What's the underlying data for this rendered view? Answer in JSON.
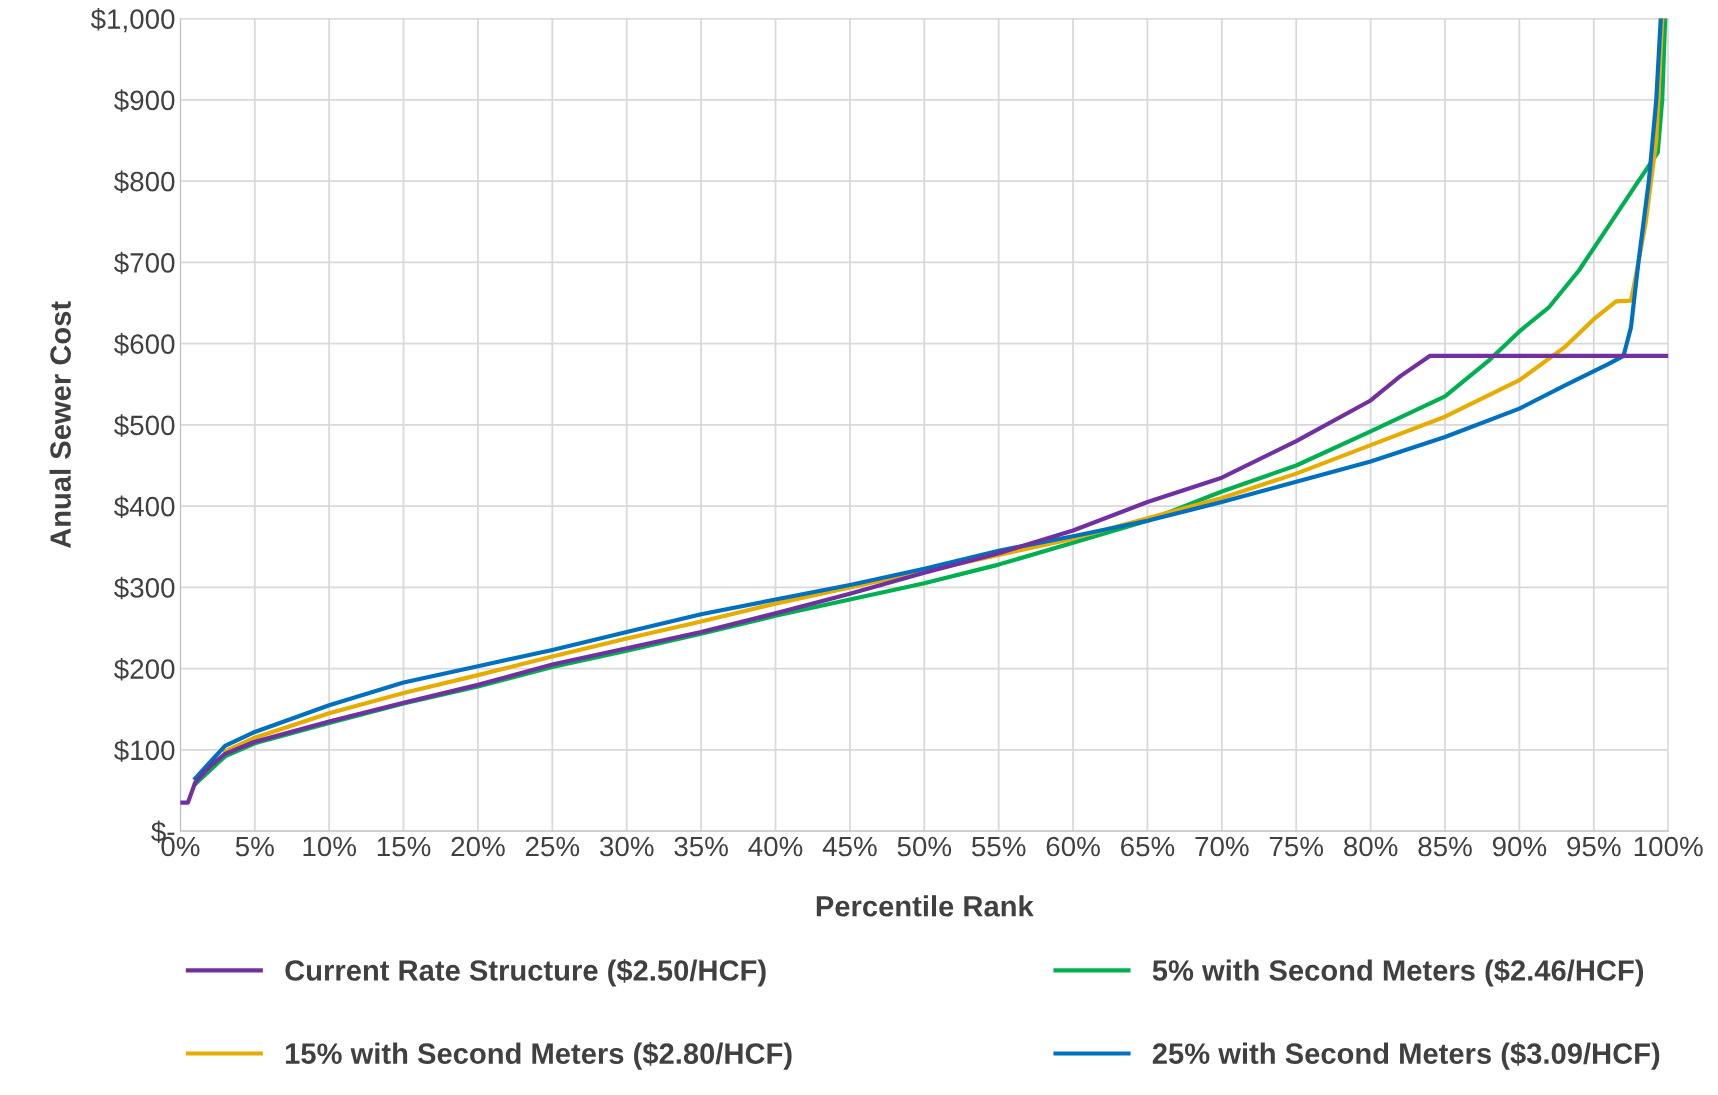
{
  "chart_data": {
    "type": "line",
    "xlabel": "Percentile Rank",
    "ylabel": "Anual Sewer Cost",
    "grid": true,
    "legend": "bottom",
    "marker": "none",
    "line_style": "solid",
    "xlim": [
      0,
      100
    ],
    "ylim": [
      0,
      1000
    ],
    "xticks": [
      {
        "value": 0,
        "label": "0%"
      },
      {
        "value": 5,
        "label": "5%"
      },
      {
        "value": 10,
        "label": "10%"
      },
      {
        "value": 15,
        "label": "15%"
      },
      {
        "value": 20,
        "label": "20%"
      },
      {
        "value": 25,
        "label": "25%"
      },
      {
        "value": 30,
        "label": "30%"
      },
      {
        "value": 35,
        "label": "35%"
      },
      {
        "value": 40,
        "label": "40%"
      },
      {
        "value": 45,
        "label": "45%"
      },
      {
        "value": 50,
        "label": "50%"
      },
      {
        "value": 55,
        "label": "55%"
      },
      {
        "value": 60,
        "label": "60%"
      },
      {
        "value": 65,
        "label": "65%"
      },
      {
        "value": 70,
        "label": "70%"
      },
      {
        "value": 75,
        "label": "75%"
      },
      {
        "value": 80,
        "label": "80%"
      },
      {
        "value": 85,
        "label": "85%"
      },
      {
        "value": 90,
        "label": "90%"
      },
      {
        "value": 95,
        "label": "95%"
      },
      {
        "value": 100,
        "label": "100%"
      }
    ],
    "yticks": [
      {
        "value": 0,
        "label": "$-"
      },
      {
        "value": 100,
        "label": "$100"
      },
      {
        "value": 200,
        "label": "$200"
      },
      {
        "value": 300,
        "label": "$300"
      },
      {
        "value": 400,
        "label": "$400"
      },
      {
        "value": 500,
        "label": "$500"
      },
      {
        "value": 600,
        "label": "$600"
      },
      {
        "value": 700,
        "label": "$700"
      },
      {
        "value": 800,
        "label": "$800"
      },
      {
        "value": 900,
        "label": "$900"
      },
      {
        "value": 1000,
        "label": "$1,000"
      }
    ],
    "series": [
      {
        "name": "Current Rate Structure ($2.50/HCF)",
        "color": "#7030a0",
        "x": [
          0,
          0.5,
          1,
          2,
          3,
          5,
          10,
          15,
          20,
          25,
          30,
          35,
          40,
          45,
          50,
          55,
          60,
          65,
          70,
          75,
          80,
          82,
          84,
          100
        ],
        "values": [
          35,
          35,
          60,
          80,
          95,
          110,
          135,
          158,
          180,
          205,
          225,
          245,
          268,
          292,
          318,
          342,
          370,
          405,
          435,
          480,
          530,
          560,
          585,
          585
        ]
      },
      {
        "name": "5% with Second Meters ($2.46/HCF)",
        "color": "#00b050",
        "x": [
          1,
          3,
          5,
          10,
          15,
          20,
          25,
          30,
          35,
          40,
          45,
          50,
          55,
          60,
          65,
          70,
          75,
          80,
          85,
          88,
          90,
          92,
          94,
          96,
          98,
          99.3,
          99.6,
          99.8
        ],
        "values": [
          58,
          92,
          108,
          133,
          157,
          178,
          202,
          222,
          243,
          265,
          285,
          305,
          328,
          355,
          382,
          418,
          450,
          492,
          535,
          580,
          615,
          645,
          690,
          745,
          800,
          835,
          900,
          1000
        ]
      },
      {
        "name": "15% with Second Meters ($2.80/HCF)",
        "color": "#e6ac00",
        "x": [
          3,
          5,
          10,
          15,
          20,
          25,
          30,
          35,
          40,
          45,
          50,
          55,
          60,
          65,
          70,
          75,
          80,
          85,
          90,
          93,
          95,
          96.5,
          97.5,
          98,
          98.5,
          99.2,
          99.6
        ],
        "values": [
          98,
          115,
          145,
          170,
          192,
          215,
          237,
          258,
          280,
          300,
          320,
          340,
          360,
          385,
          410,
          440,
          475,
          510,
          555,
          595,
          630,
          652,
          653,
          700,
          750,
          850,
          1000
        ]
      },
      {
        "name": "25% with Second Meters ($3.09/HCF)",
        "color": "#0070c0",
        "x": [
          1,
          3,
          5,
          10,
          15,
          20,
          25,
          30,
          35,
          40,
          45,
          50,
          55,
          60,
          65,
          70,
          75,
          80,
          85,
          90,
          93,
          96,
          97,
          97.5,
          98,
          98.7,
          99.2,
          99.5
        ],
        "values": [
          65,
          105,
          122,
          155,
          183,
          203,
          223,
          245,
          267,
          285,
          303,
          323,
          345,
          363,
          382,
          405,
          430,
          455,
          485,
          520,
          548,
          575,
          585,
          620,
          700,
          800,
          900,
          1000
        ]
      }
    ]
  }
}
